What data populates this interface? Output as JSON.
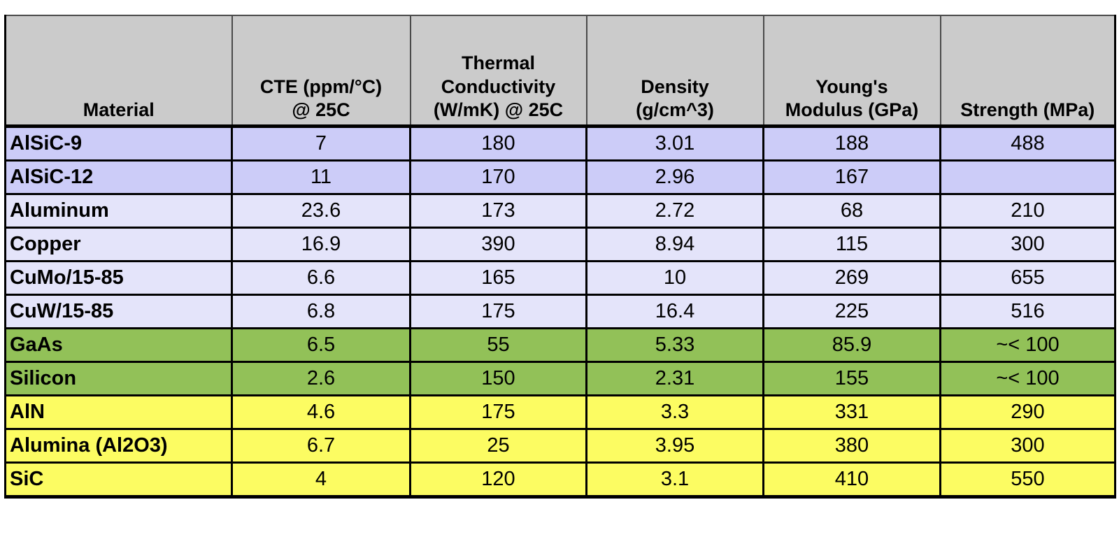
{
  "table": {
    "columns": [
      {
        "label": "Material"
      },
      {
        "label": "CTE (ppm/°C)\n@ 25C"
      },
      {
        "label": "Thermal\nConductivity\n(W/mK) @ 25C"
      },
      {
        "label": "Density\n(g/cm^3)"
      },
      {
        "label": "Young's\nModulus (GPa)"
      },
      {
        "label": "Strength (MPa)"
      }
    ],
    "rows": [
      {
        "material": "AlSiC-9",
        "cte": "7",
        "thermal_conductivity": "180",
        "density": "3.01",
        "youngs_modulus": "188",
        "strength": "488",
        "group": "composite"
      },
      {
        "material": "AlSiC-12",
        "cte": "11",
        "thermal_conductivity": "170",
        "density": "2.96",
        "youngs_modulus": "167",
        "strength": "",
        "group": "composite"
      },
      {
        "material": "Aluminum",
        "cte": "23.6",
        "thermal_conductivity": "173",
        "density": "2.72",
        "youngs_modulus": "68",
        "strength": "210",
        "group": "metal"
      },
      {
        "material": "Copper",
        "cte": "16.9",
        "thermal_conductivity": "390",
        "density": "8.94",
        "youngs_modulus": "115",
        "strength": "300",
        "group": "metal"
      },
      {
        "material": "CuMo/15-85",
        "cte": "6.6",
        "thermal_conductivity": "165",
        "density": "10",
        "youngs_modulus": "269",
        "strength": "655",
        "group": "metal"
      },
      {
        "material": "CuW/15-85",
        "cte": "6.8",
        "thermal_conductivity": "175",
        "density": "16.4",
        "youngs_modulus": "225",
        "strength": "516",
        "group": "metal"
      },
      {
        "material": "GaAs",
        "cte": "6.5",
        "thermal_conductivity": "55",
        "density": "5.33",
        "youngs_modulus": "85.9",
        "strength": "~< 100",
        "group": "semiconductor"
      },
      {
        "material": "Silicon",
        "cte": "2.6",
        "thermal_conductivity": "150",
        "density": "2.31",
        "youngs_modulus": "155",
        "strength": "~< 100",
        "group": "semiconductor"
      },
      {
        "material": "AlN",
        "cte": "4.6",
        "thermal_conductivity": "175",
        "density": "3.3",
        "youngs_modulus": "331",
        "strength": "290",
        "group": "ceramic"
      },
      {
        "material": "Alumina (Al2O3)",
        "cte": "6.7",
        "thermal_conductivity": "25",
        "density": "3.95",
        "youngs_modulus": "380",
        "strength": "300",
        "group": "ceramic"
      },
      {
        "material": "SiC",
        "cte": "4",
        "thermal_conductivity": "120",
        "density": "3.1",
        "youngs_modulus": "410",
        "strength": "550",
        "group": "ceramic"
      }
    ],
    "colors": {
      "header_bg": "#cbcbcb",
      "group_composite": "#ccccf8",
      "group_metal": "#e4e4fa",
      "group_semiconductor": "#92c158",
      "group_ceramic": "#fcfc62",
      "border": "#000000"
    }
  }
}
